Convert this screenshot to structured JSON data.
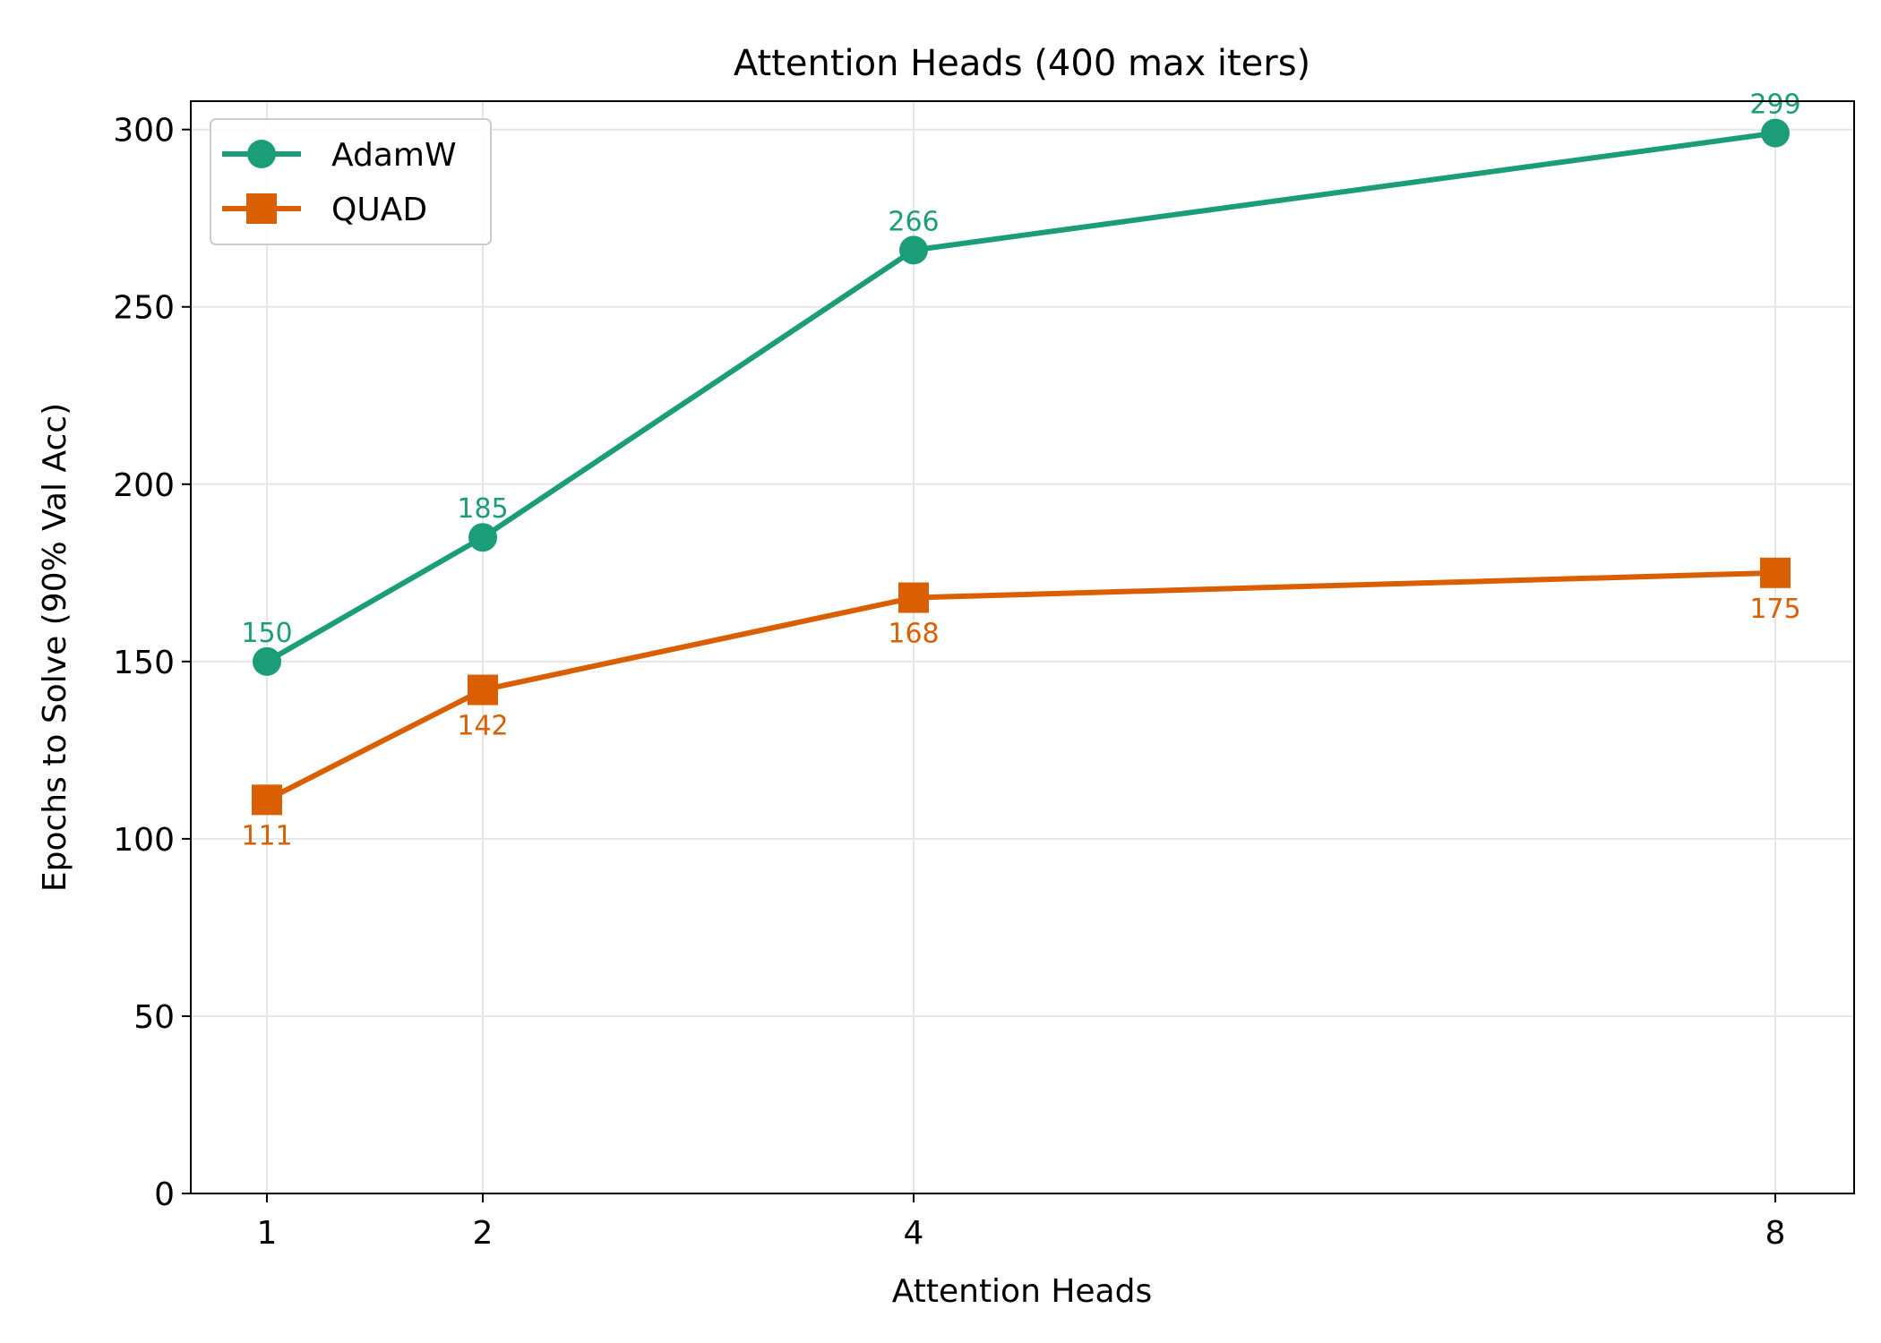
{
  "chart_data": {
    "type": "line",
    "title": "Attention Heads (400 max iters)",
    "xlabel": "Attention Heads",
    "ylabel": "Epochs to Solve (90% Val Acc)",
    "x": [
      1,
      2,
      4,
      8
    ],
    "x_ticks": [
      "1",
      "2",
      "4",
      "8"
    ],
    "ylim": [
      0,
      308
    ],
    "y_ticks": [
      0,
      50,
      100,
      150,
      200,
      250,
      300
    ],
    "grid": true,
    "legend_position": "top-left",
    "series": [
      {
        "name": "AdamW",
        "values": [
          150,
          185,
          266,
          299
        ],
        "color": "#1b9e77",
        "marker": "circle",
        "label_position": "above"
      },
      {
        "name": "QUAD",
        "values": [
          111,
          142,
          168,
          175
        ],
        "color": "#d95f02",
        "marker": "square",
        "label_position": "below"
      }
    ]
  }
}
